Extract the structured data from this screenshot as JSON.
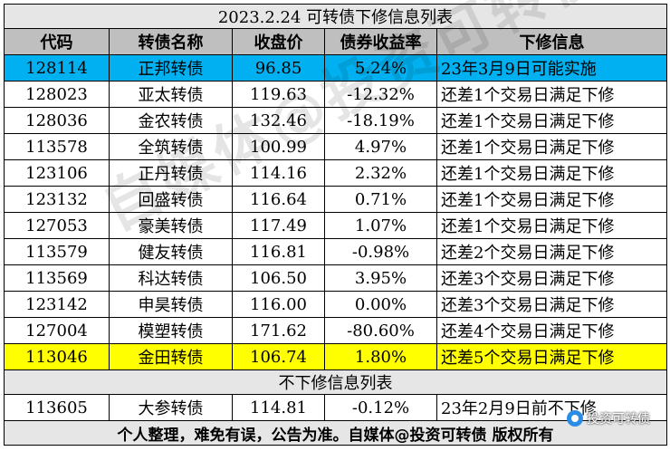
{
  "title": "2023.2.24 可转债下修信息列表",
  "columns": [
    "代码",
    "转债名称",
    "收盘价",
    "债券收益率",
    "下修信息"
  ],
  "rows": [
    {
      "code": "128114",
      "name": "正邦转债",
      "price": "96.85",
      "yield": "5.24%",
      "info": "23年3月9日可能实施",
      "highlight": "blue"
    },
    {
      "code": "128023",
      "name": "亚太转债",
      "price": "119.63",
      "yield": "-12.32%",
      "info": "还差1个交易日满足下修",
      "highlight": ""
    },
    {
      "code": "128036",
      "name": "金农转债",
      "price": "132.46",
      "yield": "-18.19%",
      "info": "还差1个交易日满足下修",
      "highlight": ""
    },
    {
      "code": "113578",
      "name": "全筑转债",
      "price": "100.99",
      "yield": "4.97%",
      "info": "还差1个交易日满足下修",
      "highlight": ""
    },
    {
      "code": "123106",
      "name": "正丹转债",
      "price": "114.16",
      "yield": "2.32%",
      "info": "还差1个交易日满足下修",
      "highlight": ""
    },
    {
      "code": "123132",
      "name": "回盛转债",
      "price": "116.64",
      "yield": "0.71%",
      "info": "还差1个交易日满足下修",
      "highlight": ""
    },
    {
      "code": "127053",
      "name": "豪美转债",
      "price": "117.49",
      "yield": "1.07%",
      "info": "还差1个交易日满足下修",
      "highlight": ""
    },
    {
      "code": "113579",
      "name": "健友转债",
      "price": "116.81",
      "yield": "-0.98%",
      "info": "还差2个交易日满足下修",
      "highlight": ""
    },
    {
      "code": "113569",
      "name": "科达转债",
      "price": "106.50",
      "yield": "3.95%",
      "info": "还差3个交易日满足下修",
      "highlight": ""
    },
    {
      "code": "123142",
      "name": "申昊转债",
      "price": "116.00",
      "yield": "0.00%",
      "info": "还差3个交易日满足下修",
      "highlight": ""
    },
    {
      "code": "127004",
      "name": "模塑转债",
      "price": "171.62",
      "yield": "-80.60%",
      "info": "还差4个交易日满足下修",
      "highlight": ""
    },
    {
      "code": "113046",
      "name": "金田转债",
      "price": "106.74",
      "yield": "1.80%",
      "info": "还差5个交易日满足下修",
      "highlight": "yellow"
    }
  ],
  "sub_title": "不下修信息列表",
  "no_revision_rows": [
    {
      "code": "113605",
      "name": "大参转债",
      "price": "114.81",
      "yield": "-0.12%",
      "info": "23年2月9日前不下修"
    }
  ],
  "footer": "个人整理，难免有误，公告为准。自媒体@投资可转债 版权所有",
  "watermark": "自媒体@投资可转债",
  "badge": "投资可转债",
  "colors": {
    "highlight_blue": "#00b0f0",
    "highlight_yellow": "#ffff00",
    "header_gray": "#bfbfbf",
    "title_gray": "#e6e6e6"
  }
}
